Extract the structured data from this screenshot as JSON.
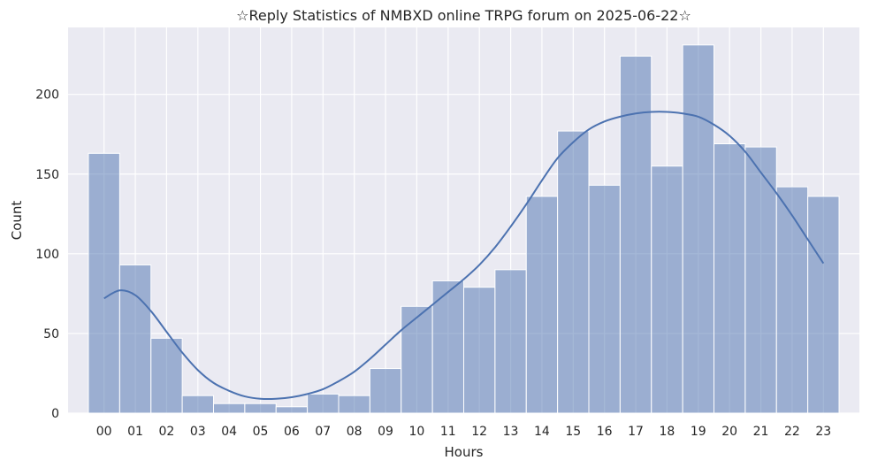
{
  "chart_data": {
    "type": "bar",
    "title": "☆Reply Statistics of NMBXD online TRPG forum on 2025-06-22☆",
    "xlabel": "Hours",
    "ylabel": "Count",
    "categories": [
      "00",
      "01",
      "02",
      "03",
      "04",
      "05",
      "06",
      "07",
      "08",
      "09",
      "10",
      "11",
      "12",
      "13",
      "14",
      "15",
      "16",
      "17",
      "18",
      "19",
      "20",
      "21",
      "22",
      "23"
    ],
    "values": [
      163,
      93,
      47,
      11,
      6,
      6,
      4,
      12,
      11,
      28,
      67,
      83,
      79,
      90,
      136,
      177,
      143,
      224,
      155,
      231,
      169,
      167,
      142,
      136
    ],
    "kde": {
      "x": [
        0,
        0.5,
        1,
        1.5,
        2,
        2.5,
        3,
        3.5,
        4,
        4.5,
        5,
        5.5,
        6,
        6.5,
        7,
        7.5,
        8,
        8.5,
        9,
        9.5,
        10,
        10.5,
        11,
        11.5,
        12,
        12.5,
        13,
        13.5,
        14,
        14.5,
        15,
        15.5,
        16,
        16.5,
        17,
        17.5,
        18,
        18.5,
        19,
        19.5,
        20,
        20.5,
        21,
        21.5,
        22,
        22.5,
        23
      ],
      "y": [
        72,
        77,
        74,
        64,
        51,
        38,
        27,
        19,
        14,
        10.5,
        9,
        9,
        10,
        12,
        15,
        20,
        26,
        34,
        43,
        52,
        60,
        68,
        76,
        84,
        93,
        104,
        117,
        131,
        146,
        160,
        170,
        178,
        183,
        186,
        188,
        189,
        189,
        188,
        186,
        181,
        174,
        164,
        151,
        138,
        124,
        109,
        94
      ]
    },
    "ylim": [
      0,
      242
    ],
    "yticks": [
      0,
      50,
      100,
      150,
      200
    ],
    "grid": true,
    "colors": {
      "background": "#eaeaf2",
      "bar_fill": "#4c72b0",
      "bar_opacity": "0.5",
      "bar_edge": "#ffffff",
      "line": "#4c72b0",
      "grid": "#ffffff"
    }
  }
}
